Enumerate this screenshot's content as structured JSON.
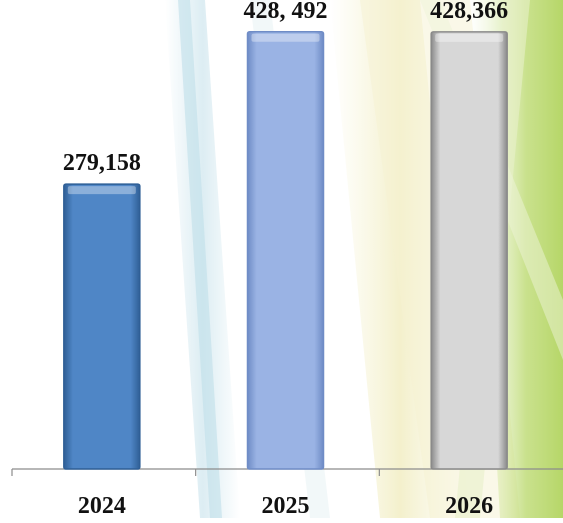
{
  "chart_data": {
    "type": "bar",
    "categories": [
      "2024",
      "2025",
      "2026"
    ],
    "values": [
      279158,
      428492,
      428366
    ],
    "data_labels": [
      "279,158",
      "428, 492",
      "428,366"
    ],
    "ylim": [
      0,
      440000
    ],
    "grid": false,
    "legend": "none",
    "bar_colors": [
      "#4f86c6",
      "#9ab3e4",
      "#d7d7d7"
    ],
    "bar_edge_colors": [
      "#2f5f96",
      "#6f8cc6",
      "#8a8a8a"
    ],
    "label_color": "#111111",
    "axis_color": "#8c8c8c"
  }
}
